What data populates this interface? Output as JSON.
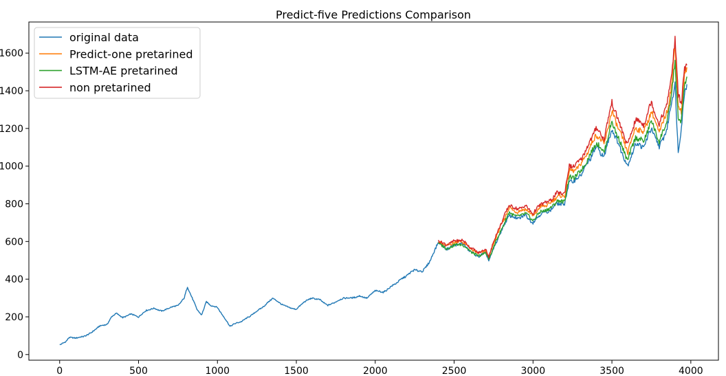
{
  "chart_data": {
    "type": "line",
    "title": "Predict-five Predictions Comparison",
    "xlabel": "",
    "ylabel": "",
    "xlim": [
      -195,
      4175
    ],
    "ylim": [
      -30,
      1765
    ],
    "x_ticks": [
      0,
      500,
      1000,
      1500,
      2000,
      2500,
      3000,
      3500,
      4000
    ],
    "y_ticks": [
      0,
      200,
      400,
      600,
      800,
      1000,
      1200,
      1400,
      1600
    ],
    "grid": false,
    "legend_position": "top-left",
    "series": [
      {
        "name": "original data",
        "color": "#1f77b4",
        "points": [
          [
            0,
            50
          ],
          [
            40,
            70
          ],
          [
            60,
            90
          ],
          [
            100,
            88
          ],
          [
            150,
            95
          ],
          [
            200,
            115
          ],
          [
            250,
            150
          ],
          [
            300,
            160
          ],
          [
            330,
            200
          ],
          [
            360,
            220
          ],
          [
            400,
            195
          ],
          [
            450,
            215
          ],
          [
            500,
            200
          ],
          [
            550,
            235
          ],
          [
            600,
            245
          ],
          [
            650,
            230
          ],
          [
            700,
            250
          ],
          [
            750,
            260
          ],
          [
            790,
            300
          ],
          [
            810,
            360
          ],
          [
            840,
            300
          ],
          [
            870,
            240
          ],
          [
            900,
            210
          ],
          [
            930,
            280
          ],
          [
            960,
            260
          ],
          [
            1000,
            250
          ],
          [
            1040,
            200
          ],
          [
            1080,
            150
          ],
          [
            1100,
            160
          ],
          [
            1150,
            175
          ],
          [
            1200,
            200
          ],
          [
            1250,
            230
          ],
          [
            1300,
            260
          ],
          [
            1350,
            300
          ],
          [
            1400,
            270
          ],
          [
            1450,
            250
          ],
          [
            1500,
            240
          ],
          [
            1550,
            280
          ],
          [
            1600,
            300
          ],
          [
            1650,
            290
          ],
          [
            1700,
            260
          ],
          [
            1750,
            280
          ],
          [
            1800,
            300
          ],
          [
            1850,
            300
          ],
          [
            1900,
            310
          ],
          [
            1950,
            300
          ],
          [
            2000,
            340
          ],
          [
            2050,
            330
          ],
          [
            2100,
            360
          ],
          [
            2150,
            390
          ],
          [
            2200,
            420
          ],
          [
            2250,
            450
          ],
          [
            2300,
            440
          ],
          [
            2350,
            500
          ],
          [
            2400,
            600
          ],
          [
            2450,
            560
          ],
          [
            2500,
            580
          ],
          [
            2550,
            590
          ],
          [
            2600,
            550
          ],
          [
            2650,
            520
          ],
          [
            2700,
            540
          ],
          [
            2720,
            500
          ],
          [
            2750,
            560
          ],
          [
            2800,
            660
          ],
          [
            2850,
            740
          ],
          [
            2900,
            720
          ],
          [
            2950,
            740
          ],
          [
            3000,
            700
          ],
          [
            3050,
            750
          ],
          [
            3100,
            760
          ],
          [
            3150,
            800
          ],
          [
            3200,
            800
          ],
          [
            3230,
            920
          ],
          [
            3260,
            920
          ],
          [
            3300,
            950
          ],
          [
            3350,
            1020
          ],
          [
            3400,
            1100
          ],
          [
            3450,
            1050
          ],
          [
            3500,
            1200
          ],
          [
            3550,
            1100
          ],
          [
            3600,
            1000
          ],
          [
            3650,
            1120
          ],
          [
            3700,
            1100
          ],
          [
            3750,
            1200
          ],
          [
            3800,
            1100
          ],
          [
            3850,
            1200
          ],
          [
            3880,
            1350
          ],
          [
            3900,
            1440
          ],
          [
            3920,
            1070
          ],
          [
            3940,
            1200
          ],
          [
            3960,
            1400
          ],
          [
            3975,
            1435
          ]
        ]
      },
      {
        "name": "Predict-one pretarined",
        "color": "#ff7f0e",
        "points": [
          [
            2400,
            600
          ],
          [
            2450,
            575
          ],
          [
            2500,
            595
          ],
          [
            2550,
            600
          ],
          [
            2600,
            565
          ],
          [
            2650,
            535
          ],
          [
            2700,
            552
          ],
          [
            2720,
            515
          ],
          [
            2750,
            590
          ],
          [
            2800,
            690
          ],
          [
            2850,
            780
          ],
          [
            2900,
            755
          ],
          [
            2950,
            775
          ],
          [
            3000,
            735
          ],
          [
            3050,
            785
          ],
          [
            3100,
            795
          ],
          [
            3150,
            838
          ],
          [
            3200,
            840
          ],
          [
            3230,
            975
          ],
          [
            3260,
            975
          ],
          [
            3300,
            1005
          ],
          [
            3350,
            1080
          ],
          [
            3400,
            1170
          ],
          [
            3450,
            1115
          ],
          [
            3500,
            1290
          ],
          [
            3550,
            1180
          ],
          [
            3600,
            1075
          ],
          [
            3650,
            1205
          ],
          [
            3700,
            1180
          ],
          [
            3750,
            1290
          ],
          [
            3800,
            1180
          ],
          [
            3850,
            1290
          ],
          [
            3880,
            1440
          ],
          [
            3900,
            1650
          ],
          [
            3920,
            1330
          ],
          [
            3940,
            1290
          ],
          [
            3960,
            1480
          ],
          [
            3975,
            1525
          ]
        ]
      },
      {
        "name": "LSTM-AE pretarined",
        "color": "#2ca02c",
        "points": [
          [
            2400,
            595
          ],
          [
            2450,
            560
          ],
          [
            2500,
            580
          ],
          [
            2550,
            585
          ],
          [
            2600,
            550
          ],
          [
            2650,
            522
          ],
          [
            2700,
            540
          ],
          [
            2720,
            505
          ],
          [
            2750,
            570
          ],
          [
            2800,
            665
          ],
          [
            2850,
            755
          ],
          [
            2900,
            730
          ],
          [
            2950,
            750
          ],
          [
            3000,
            712
          ],
          [
            3050,
            760
          ],
          [
            3100,
            770
          ],
          [
            3150,
            812
          ],
          [
            3200,
            815
          ],
          [
            3230,
            940
          ],
          [
            3260,
            940
          ],
          [
            3300,
            970
          ],
          [
            3350,
            1040
          ],
          [
            3400,
            1125
          ],
          [
            3450,
            1075
          ],
          [
            3500,
            1235
          ],
          [
            3550,
            1130
          ],
          [
            3600,
            1030
          ],
          [
            3650,
            1155
          ],
          [
            3700,
            1130
          ],
          [
            3750,
            1240
          ],
          [
            3800,
            1130
          ],
          [
            3850,
            1240
          ],
          [
            3880,
            1390
          ],
          [
            3900,
            1560
          ],
          [
            3920,
            1250
          ],
          [
            3940,
            1240
          ],
          [
            3960,
            1420
          ],
          [
            3975,
            1475
          ]
        ]
      },
      {
        "name": "non pretarined",
        "color": "#d62728",
        "points": [
          [
            2400,
            605
          ],
          [
            2450,
            582
          ],
          [
            2500,
            602
          ],
          [
            2550,
            608
          ],
          [
            2600,
            572
          ],
          [
            2650,
            540
          ],
          [
            2700,
            558
          ],
          [
            2720,
            520
          ],
          [
            2750,
            600
          ],
          [
            2800,
            700
          ],
          [
            2850,
            795
          ],
          [
            2900,
            770
          ],
          [
            2950,
            790
          ],
          [
            3000,
            748
          ],
          [
            3050,
            800
          ],
          [
            3100,
            810
          ],
          [
            3150,
            855
          ],
          [
            3200,
            858
          ],
          [
            3230,
            1000
          ],
          [
            3260,
            1000
          ],
          [
            3300,
            1030
          ],
          [
            3350,
            1110
          ],
          [
            3400,
            1205
          ],
          [
            3450,
            1145
          ],
          [
            3500,
            1340
          ],
          [
            3550,
            1220
          ],
          [
            3600,
            1110
          ],
          [
            3650,
            1250
          ],
          [
            3700,
            1220
          ],
          [
            3750,
            1340
          ],
          [
            3800,
            1220
          ],
          [
            3850,
            1335
          ],
          [
            3880,
            1490
          ],
          [
            3900,
            1685
          ],
          [
            3920,
            1380
          ],
          [
            3940,
            1330
          ],
          [
            3960,
            1520
          ],
          [
            3975,
            1535
          ]
        ]
      }
    ]
  }
}
